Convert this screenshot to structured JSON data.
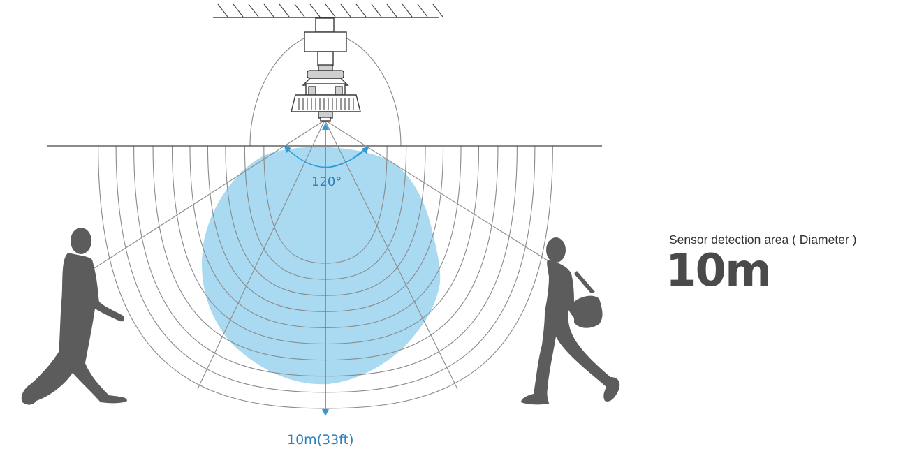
{
  "angle_label": "120°",
  "distance_label": "10m(33ft)",
  "caption": "Sensor detection area ( Diameter )",
  "value": "10m",
  "colors": {
    "detection_area": "#a9daf2",
    "accent_blue": "#2f9ad6",
    "person": "#5c5c5c",
    "value_text": "#4a4a4a"
  },
  "icons": [
    "ceiling-hatch",
    "sensor-light-fixture",
    "walking-man",
    "walking-woman-with-bag"
  ]
}
